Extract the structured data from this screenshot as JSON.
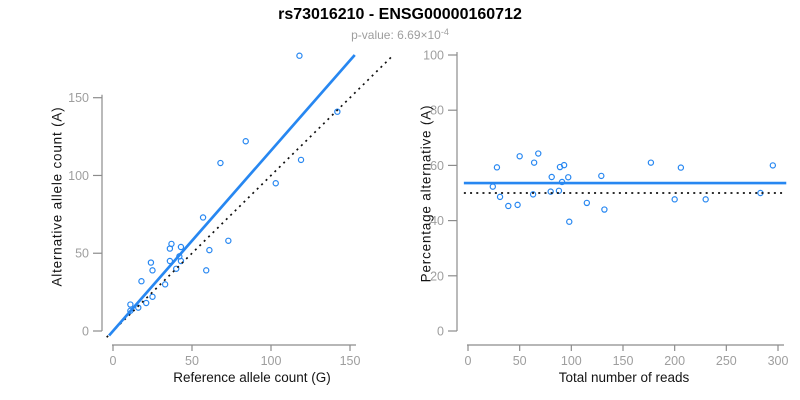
{
  "header": {
    "title": "rs73016210 - ENSG00000160712",
    "subtitle_prefix": "p-value: ",
    "subtitle_mantissa": "6.69×10",
    "subtitle_exponent": "-4"
  },
  "colors": {
    "accent_blue": "#2787F1",
    "line_black": "#111111",
    "axis_gray": "#8c8c8c",
    "tick_label_gray": "#9e9e9e"
  },
  "chart_data": [
    {
      "type": "scatter",
      "panel": "left",
      "xlabel": "Reference allele count (G)",
      "ylabel": "Alternative allele count (A)",
      "xlim": [
        0,
        175
      ],
      "ylim": [
        0,
        180
      ],
      "xticks": [
        0,
        50,
        100,
        150
      ],
      "yticks": [
        0,
        50,
        100,
        150
      ],
      "grid": false,
      "legend": false,
      "points": [
        [
          11,
          13
        ],
        [
          11,
          17
        ],
        [
          16,
          15
        ],
        [
          21,
          18
        ],
        [
          25,
          22
        ],
        [
          18,
          32
        ],
        [
          25,
          39
        ],
        [
          33,
          30
        ],
        [
          24,
          44
        ],
        [
          36,
          45
        ],
        [
          40,
          40
        ],
        [
          43,
          45
        ],
        [
          36,
          53
        ],
        [
          37,
          56
        ],
        [
          42,
          48
        ],
        [
          43,
          54
        ],
        [
          59,
          39
        ],
        [
          61,
          52
        ],
        [
          57,
          73
        ],
        [
          73,
          58
        ],
        [
          68,
          108
        ],
        [
          103,
          95
        ],
        [
          84,
          122
        ],
        [
          119,
          110
        ],
        [
          142,
          141
        ],
        [
          118,
          177
        ]
      ],
      "lines": [
        {
          "name": "identity-line",
          "style": "dotted",
          "color": "#111111",
          "slope": 1,
          "intercept": 0,
          "x_range": [
            -4,
            176
          ]
        },
        {
          "name": "fit-line",
          "style": "solid",
          "color": "#2787F1",
          "slope": 1.16,
          "intercept": 0,
          "x_range": [
            -2.5,
            153
          ]
        }
      ]
    },
    {
      "type": "scatter",
      "panel": "right",
      "xlabel": "Total number of reads",
      "ylabel": "Percentage alternative (A)",
      "xlim": [
        0,
        310
      ],
      "ylim": [
        0,
        100
      ],
      "xticks": [
        0,
        50,
        100,
        150,
        200,
        250,
        300
      ],
      "yticks": [
        0,
        20,
        40,
        60,
        80,
        100
      ],
      "grid": false,
      "legend": false,
      "points": [
        [
          24,
          52.3
        ],
        [
          28,
          59.3
        ],
        [
          31,
          48.6
        ],
        [
          39,
          45.3
        ],
        [
          48,
          45.7
        ],
        [
          50,
          63.3
        ],
        [
          64,
          61
        ],
        [
          63,
          49.5
        ],
        [
          68,
          64.3
        ],
        [
          81,
          55.8
        ],
        [
          80,
          50.5
        ],
        [
          88,
          50.8
        ],
        [
          89,
          59.4
        ],
        [
          93,
          60.1
        ],
        [
          91,
          54
        ],
        [
          97,
          55.7
        ],
        [
          98,
          39.6
        ],
        [
          115,
          46.4
        ],
        [
          129,
          56.2
        ],
        [
          132,
          44
        ],
        [
          177,
          61
        ],
        [
          200,
          47.7
        ],
        [
          206,
          59.2
        ],
        [
          230,
          47.7
        ],
        [
          283,
          50
        ],
        [
          295,
          60
        ]
      ],
      "lines": [
        {
          "name": "reference-50pct-line",
          "style": "dotted",
          "color": "#111111",
          "y": 50,
          "x_range": [
            -4,
            308
          ]
        },
        {
          "name": "mean-pct-line",
          "style": "solid",
          "color": "#2787F1",
          "y": 53.6,
          "x_range": [
            -4,
            308
          ]
        }
      ]
    }
  ]
}
